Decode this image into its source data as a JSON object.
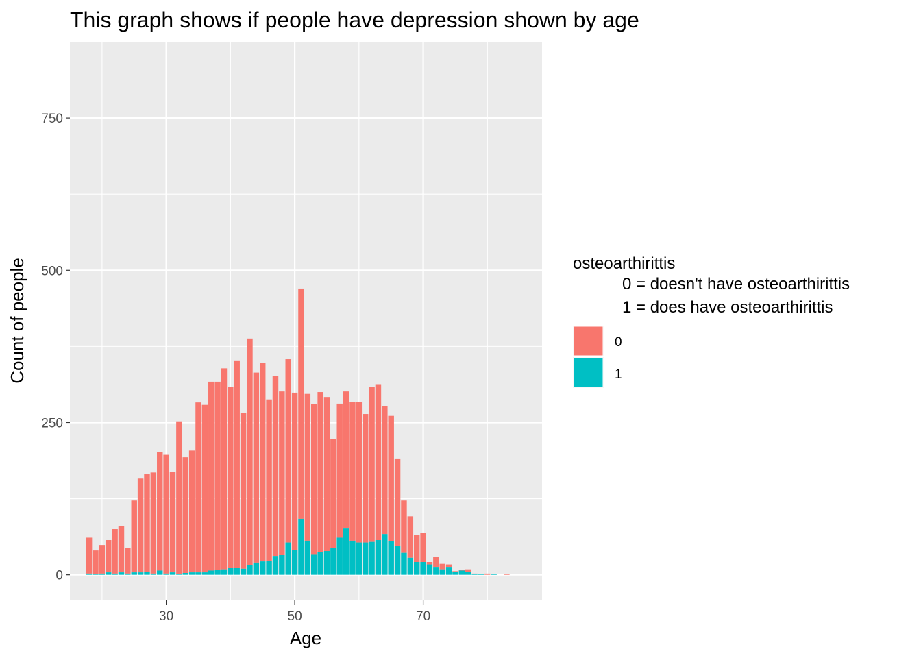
{
  "chart_data": {
    "type": "bar",
    "stacked": true,
    "title": "This graph shows if people have depression shown by age",
    "xlabel": "Age",
    "ylabel": "Count of people",
    "xlim": [
      15,
      88.5
    ],
    "ylim": [
      -42,
      875
    ],
    "x_ticks": [
      30,
      50,
      70
    ],
    "y_ticks": [
      0,
      250,
      500,
      750
    ],
    "grid": true,
    "legend": {
      "position": "right",
      "title_lines": [
        "osteoarthirittis",
        "0 = doesn't have osteoarthirittis",
        "1 = does have osteoarthirittis"
      ],
      "entries": [
        {
          "label": "0",
          "color": "#F8766D"
        },
        {
          "label": "1",
          "color": "#00BFC4"
        }
      ]
    },
    "x": [
      18,
      19,
      20,
      21,
      22,
      23,
      24,
      25,
      26,
      27,
      28,
      29,
      30,
      31,
      32,
      33,
      34,
      35,
      36,
      37,
      38,
      39,
      40,
      41,
      42,
      43,
      44,
      45,
      46,
      47,
      48,
      49,
      50,
      51,
      52,
      53,
      54,
      55,
      56,
      57,
      58,
      59,
      60,
      61,
      62,
      63,
      64,
      65,
      66,
      67,
      68,
      69,
      70,
      71,
      72,
      73,
      74,
      75,
      76,
      77,
      78,
      79,
      80,
      81,
      82,
      83,
      84,
      85
    ],
    "series": [
      {
        "name": "0",
        "color": "#F8766D",
        "values": [
          59,
          39,
          47,
          53,
          73,
          76,
          42,
          118,
          154,
          160,
          166,
          195,
          195,
          165,
          251,
          190,
          200,
          279,
          275,
          310,
          309,
          330,
          297,
          341,
          256,
          372,
          312,
          326,
          265,
          295,
          268,
          301,
          258,
          378,
          241,
          246,
          263,
          253,
          179,
          220,
          225,
          228,
          231,
          211,
          255,
          256,
          210,
          206,
          144,
          86,
          68,
          44,
          48,
          4,
          16,
          9,
          4,
          1,
          1,
          4,
          1,
          0,
          2,
          0,
          0,
          1,
          0,
          0
        ]
      },
      {
        "name": "1",
        "color": "#00BFC4",
        "values": [
          2,
          1,
          2,
          4,
          2,
          4,
          2,
          4,
          4,
          5,
          2,
          7,
          2,
          4,
          1,
          3,
          4,
          4,
          4,
          7,
          8,
          9,
          11,
          11,
          10,
          16,
          20,
          22,
          23,
          31,
          33,
          53,
          41,
          92,
          56,
          34,
          37,
          39,
          44,
          61,
          76,
          56,
          53,
          53,
          54,
          57,
          67,
          55,
          47,
          36,
          28,
          21,
          21,
          17,
          13,
          9,
          13,
          5,
          7,
          5,
          1,
          1,
          0,
          1,
          0,
          0,
          0,
          0
        ]
      }
    ]
  }
}
